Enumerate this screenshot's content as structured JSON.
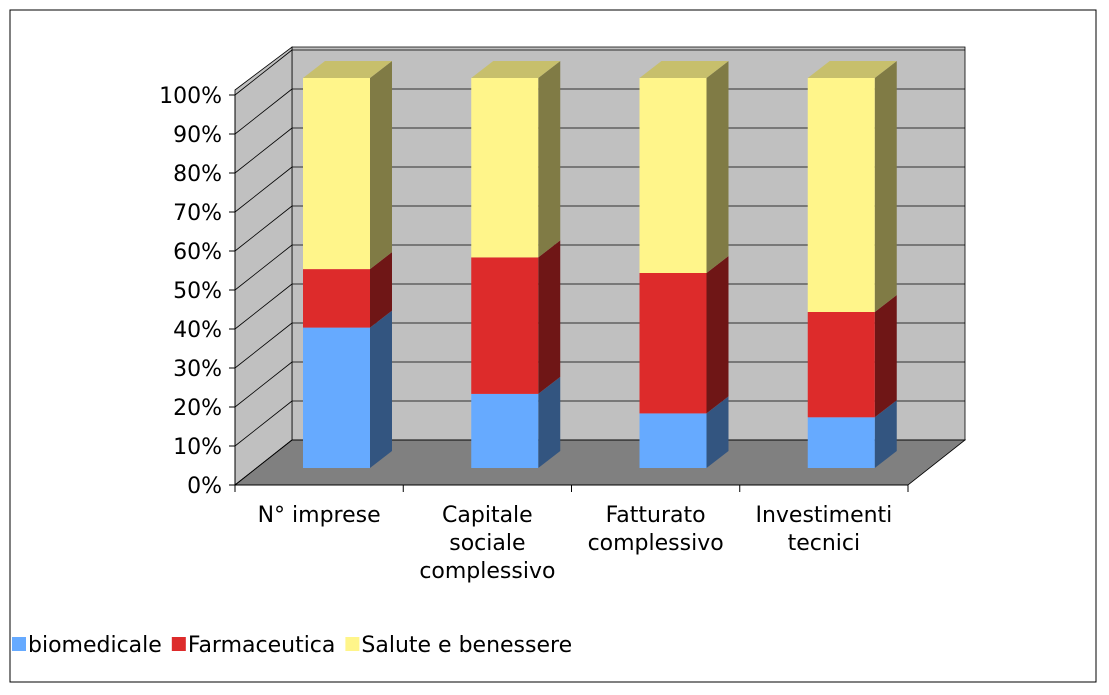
{
  "chart_data": {
    "type": "bar3d_stacked",
    "categories": [
      "N° imprese",
      "Capitale sociale complessivo",
      "Fatturato complessivo",
      "Investimenti tecnici"
    ],
    "series": [
      {
        "name": "biomedicale",
        "color": "#66aaff",
        "values": [
          36,
          19,
          14,
          13
        ]
      },
      {
        "name": "Farmaceutica",
        "color": "#dd2b2b",
        "values": [
          15,
          35,
          36,
          27
        ]
      },
      {
        "name": "Salute e benessere",
        "color": "#fff58a",
        "values": [
          49,
          46,
          50,
          60
        ]
      }
    ],
    "ylim": [
      0,
      100
    ],
    "yticks": [
      {
        "value": 0,
        "label": "0%"
      },
      {
        "value": 10,
        "label": "10%"
      },
      {
        "value": 20,
        "label": "20%"
      },
      {
        "value": 30,
        "label": "30%"
      },
      {
        "value": 40,
        "label": "40%"
      },
      {
        "value": 50,
        "label": "50%"
      },
      {
        "value": 60,
        "label": "60%"
      },
      {
        "value": 70,
        "label": "70%"
      },
      {
        "value": 80,
        "label": "80%"
      },
      {
        "value": 90,
        "label": "90%"
      },
      {
        "value": 100,
        "label": "100%"
      }
    ],
    "grid": true,
    "legend": "bottom"
  }
}
